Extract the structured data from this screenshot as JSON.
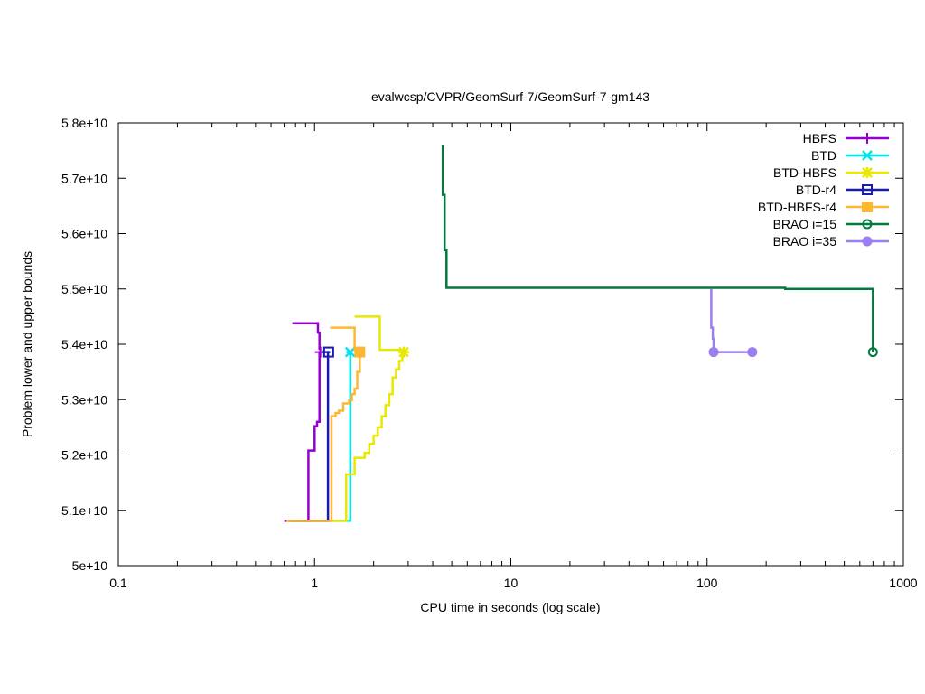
{
  "chart_data": {
    "type": "line",
    "title": "evalwcsp/CVPR/GeomSurf-7/GeomSurf-7-gm143",
    "xlabel": "CPU time in seconds (log scale)",
    "ylabel": "Problem lower and upper bounds",
    "x_scale": "log",
    "xlim": [
      0.1,
      1000
    ],
    "ylim": [
      50000000000,
      58000000000
    ],
    "x_ticks": [
      0.1,
      1,
      10,
      100,
      1000
    ],
    "x_tick_labels": [
      "0.1",
      "1",
      "10",
      "100",
      "1000"
    ],
    "y_ticks": [
      50000000000,
      51000000000,
      52000000000,
      53000000000,
      54000000000,
      55000000000,
      56000000000,
      57000000000,
      58000000000
    ],
    "y_tick_labels": [
      "5e+10",
      "5.1e+10",
      "5.2e+10",
      "5.3e+10",
      "5.4e+10",
      "5.5e+10",
      "5.6e+10",
      "5.7e+10",
      "5.8e+10"
    ],
    "grid": false,
    "legend_position": "top-right",
    "series": [
      {
        "name": "HBFS",
        "color": "#9400d3",
        "marker": "plus",
        "lower": [
          [
            0.7,
            50810000000
          ],
          [
            0.93,
            50810000000
          ],
          [
            0.93,
            52080000000
          ],
          [
            1.0,
            52080000000
          ],
          [
            1.0,
            52520000000
          ],
          [
            1.03,
            52520000000
          ],
          [
            1.03,
            52600000000
          ],
          [
            1.06,
            52600000000
          ],
          [
            1.06,
            53860000000
          ],
          [
            1.07,
            53860000000
          ]
        ],
        "upper": [
          [
            0.77,
            54380000000
          ],
          [
            1.04,
            54380000000
          ],
          [
            1.04,
            54210000000
          ],
          [
            1.06,
            54210000000
          ],
          [
            1.06,
            53900000000
          ]
        ],
        "markers": [
          [
            1.07,
            53860000000
          ]
        ]
      },
      {
        "name": "BTD",
        "color": "#00e5ee",
        "marker": "x",
        "lower": [
          [
            0.75,
            50810000000
          ],
          [
            1.52,
            50810000000
          ],
          [
            1.52,
            53860000000
          ]
        ],
        "upper": [
          [
            1.45,
            53860000000
          ],
          [
            1.55,
            53860000000
          ]
        ],
        "markers": [
          [
            1.52,
            53860000000
          ]
        ]
      },
      {
        "name": "BTD-HBFS",
        "color": "#e8e800",
        "marker": "star",
        "lower": [
          [
            0.72,
            50810000000
          ],
          [
            1.45,
            50810000000
          ],
          [
            1.45,
            51650000000
          ],
          [
            1.6,
            51650000000
          ],
          [
            1.6,
            51950000000
          ],
          [
            1.8,
            51950000000
          ],
          [
            1.8,
            52040000000
          ],
          [
            1.9,
            52040000000
          ],
          [
            1.9,
            52200000000
          ],
          [
            2.0,
            52200000000
          ],
          [
            2.0,
            52350000000
          ],
          [
            2.1,
            52350000000
          ],
          [
            2.1,
            52500000000
          ],
          [
            2.2,
            52500000000
          ],
          [
            2.2,
            52700000000
          ],
          [
            2.3,
            52700000000
          ],
          [
            2.3,
            52900000000
          ],
          [
            2.4,
            52900000000
          ],
          [
            2.4,
            53100000000
          ],
          [
            2.5,
            53100000000
          ],
          [
            2.5,
            53400000000
          ],
          [
            2.6,
            53400000000
          ],
          [
            2.6,
            53550000000
          ],
          [
            2.7,
            53550000000
          ],
          [
            2.7,
            53700000000
          ],
          [
            2.8,
            53700000000
          ],
          [
            2.8,
            53860000000
          ]
        ],
        "upper": [
          [
            1.6,
            54500000000
          ],
          [
            2.15,
            54500000000
          ],
          [
            2.15,
            53900000000
          ],
          [
            2.85,
            53900000000
          ]
        ],
        "markers": [
          [
            2.85,
            53860000000
          ]
        ]
      },
      {
        "name": "BTD-r4",
        "color": "#1a1ab3",
        "marker": "open-square",
        "lower": [
          [
            0.75,
            50810000000
          ],
          [
            1.17,
            50810000000
          ],
          [
            1.17,
            53860000000
          ]
        ],
        "upper": [
          [
            1.1,
            53860000000
          ],
          [
            1.2,
            53860000000
          ]
        ],
        "markers": [
          [
            1.18,
            53860000000
          ]
        ]
      },
      {
        "name": "BTD-HBFS-r4",
        "color": "#ffb733",
        "marker": "filled-square",
        "lower": [
          [
            0.73,
            50810000000
          ],
          [
            1.22,
            50810000000
          ],
          [
            1.22,
            52700000000
          ],
          [
            1.28,
            52700000000
          ],
          [
            1.28,
            52760000000
          ],
          [
            1.33,
            52760000000
          ],
          [
            1.33,
            52800000000
          ],
          [
            1.4,
            52800000000
          ],
          [
            1.4,
            52930000000
          ],
          [
            1.5,
            52930000000
          ],
          [
            1.5,
            52990000000
          ],
          [
            1.55,
            52990000000
          ],
          [
            1.55,
            53100000000
          ],
          [
            1.6,
            53100000000
          ],
          [
            1.6,
            53200000000
          ],
          [
            1.65,
            53200000000
          ],
          [
            1.65,
            53500000000
          ],
          [
            1.7,
            53500000000
          ],
          [
            1.7,
            53860000000
          ]
        ],
        "upper": [
          [
            1.2,
            54300000000
          ],
          [
            1.6,
            54300000000
          ],
          [
            1.6,
            53900000000
          ],
          [
            1.72,
            53900000000
          ]
        ],
        "markers": [
          [
            1.7,
            53860000000
          ]
        ]
      },
      {
        "name": "BRAO i=15",
        "color": "#007a3d",
        "marker": "open-circle",
        "upper": [
          [
            4.5,
            57600000000
          ],
          [
            4.5,
            56700000000
          ],
          [
            4.6,
            56700000000
          ],
          [
            4.6,
            55700000000
          ],
          [
            4.7,
            55700000000
          ],
          [
            4.7,
            55020000000
          ],
          [
            250,
            55020000000
          ],
          [
            250,
            55000000000
          ],
          [
            700,
            55000000000
          ],
          [
            700,
            53860000000
          ]
        ],
        "markers": [
          [
            700,
            53860000000
          ]
        ]
      },
      {
        "name": "BRAO i=35",
        "color": "#9b7ff0",
        "marker": "filled-circle",
        "upper": [
          [
            105,
            55000000000
          ],
          [
            105,
            54300000000
          ],
          [
            107,
            54300000000
          ],
          [
            107,
            54100000000
          ],
          [
            108,
            54100000000
          ],
          [
            108,
            53860000000
          ],
          [
            170,
            53860000000
          ]
        ],
        "markers": [
          [
            108,
            53860000000
          ],
          [
            170,
            53860000000
          ]
        ]
      }
    ]
  }
}
